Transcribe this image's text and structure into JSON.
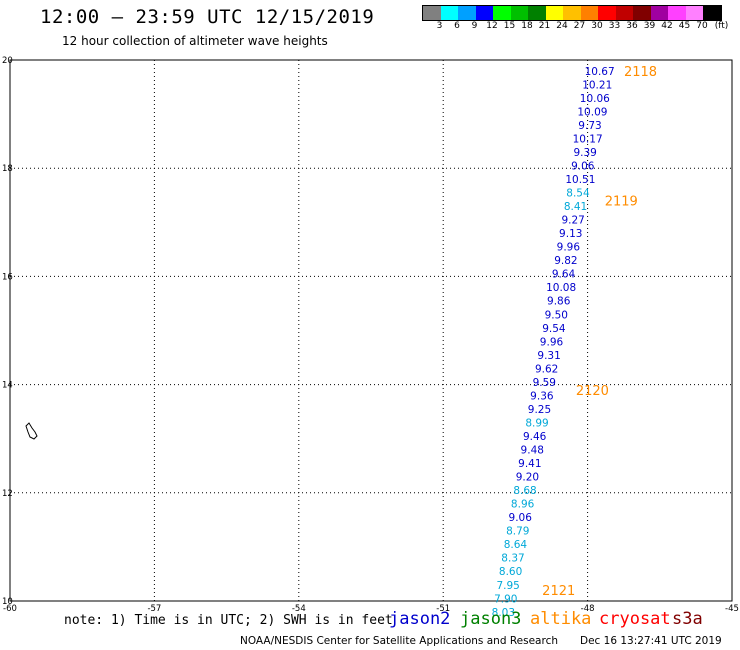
{
  "header": {
    "title": "12:00 — 23:59 UTC 12/15/2019",
    "subtitle": "12 hour collection of altimeter wave heights"
  },
  "scale": {
    "labels": [
      "3",
      "6",
      "9",
      "12",
      "15",
      "18",
      "21",
      "24",
      "27",
      "30",
      "33",
      "36",
      "39",
      "42",
      "45",
      "70",
      "(ft)"
    ],
    "colors": [
      "#808080",
      "#00ffff",
      "#00a0ff",
      "#0000ff",
      "#00ff00",
      "#00c000",
      "#008000",
      "#ffff00",
      "#ffc000",
      "#ff8000",
      "#ff0000",
      "#c00000",
      "#800000",
      "#a000a0",
      "#ff40ff",
      "#ff80ff",
      "#000000"
    ]
  },
  "map": {
    "lon_range": [
      -60,
      -45
    ],
    "lat_range": [
      10,
      20
    ],
    "x_ticks": [
      "-60",
      "-57",
      "-54",
      "-51",
      "-48",
      "-45"
    ],
    "y_ticks": [
      "20",
      "18",
      "16",
      "14",
      "12",
      "10"
    ],
    "colors": {
      "jason2": "#0000cc",
      "jason3": "#008000",
      "altika": "#ff8c00",
      "cryosat": "#ff0000",
      "s3a": "#800000",
      "light": "#00a8d8",
      "grid": "#000000"
    }
  },
  "passes": [
    {
      "label": "2118",
      "lon": -46.9,
      "lat": 19.8
    },
    {
      "label": "2119",
      "lon": -47.3,
      "lat": 17.4
    },
    {
      "label": "2120",
      "lon": -47.9,
      "lat": 13.9
    },
    {
      "label": "2121",
      "lon": -48.6,
      "lat": 10.2
    }
  ],
  "track": [
    {
      "v": "10.67",
      "lon": -47.75,
      "lat": 19.8,
      "c": "dark"
    },
    {
      "v": "10.21",
      "lon": -47.8,
      "lat": 19.55,
      "c": "dark"
    },
    {
      "v": "10.06",
      "lon": -47.85,
      "lat": 19.3,
      "c": "dark"
    },
    {
      "v": "10.09",
      "lon": -47.9,
      "lat": 19.05,
      "c": "dark"
    },
    {
      "v": "9.73",
      "lon": -47.95,
      "lat": 18.8,
      "c": "dark"
    },
    {
      "v": "10.17",
      "lon": -48.0,
      "lat": 18.55,
      "c": "dark"
    },
    {
      "v": "9.39",
      "lon": -48.05,
      "lat": 18.3,
      "c": "dark"
    },
    {
      "v": "9.06",
      "lon": -48.1,
      "lat": 18.05,
      "c": "dark"
    },
    {
      "v": "10.51",
      "lon": -48.15,
      "lat": 17.8,
      "c": "dark"
    },
    {
      "v": "8.54",
      "lon": -48.2,
      "lat": 17.55,
      "c": "light"
    },
    {
      "v": "8.41",
      "lon": -48.25,
      "lat": 17.3,
      "c": "light"
    },
    {
      "v": "9.27",
      "lon": -48.3,
      "lat": 17.05,
      "c": "dark"
    },
    {
      "v": "9.13",
      "lon": -48.35,
      "lat": 16.8,
      "c": "dark"
    },
    {
      "v": "9.96",
      "lon": -48.4,
      "lat": 16.55,
      "c": "dark"
    },
    {
      "v": "9.82",
      "lon": -48.45,
      "lat": 16.3,
      "c": "dark"
    },
    {
      "v": "9.64",
      "lon": -48.5,
      "lat": 16.05,
      "c": "dark"
    },
    {
      "v": "10.08",
      "lon": -48.55,
      "lat": 15.8,
      "c": "dark"
    },
    {
      "v": "9.86",
      "lon": -48.6,
      "lat": 15.55,
      "c": "dark"
    },
    {
      "v": "9.50",
      "lon": -48.65,
      "lat": 15.3,
      "c": "dark"
    },
    {
      "v": "9.54",
      "lon": -48.7,
      "lat": 15.05,
      "c": "dark"
    },
    {
      "v": "9.96",
      "lon": -48.75,
      "lat": 14.8,
      "c": "dark"
    },
    {
      "v": "9.31",
      "lon": -48.8,
      "lat": 14.55,
      "c": "dark"
    },
    {
      "v": "9.62",
      "lon": -48.85,
      "lat": 14.3,
      "c": "dark"
    },
    {
      "v": "9.59",
      "lon": -48.9,
      "lat": 14.05,
      "c": "dark"
    },
    {
      "v": "9.36",
      "lon": -48.95,
      "lat": 13.8,
      "c": "dark"
    },
    {
      "v": "9.25",
      "lon": -49.0,
      "lat": 13.55,
      "c": "dark"
    },
    {
      "v": "8.99",
      "lon": -49.05,
      "lat": 13.3,
      "c": "light"
    },
    {
      "v": "9.46",
      "lon": -49.1,
      "lat": 13.05,
      "c": "dark"
    },
    {
      "v": "9.48",
      "lon": -49.15,
      "lat": 12.8,
      "c": "dark"
    },
    {
      "v": "9.41",
      "lon": -49.2,
      "lat": 12.55,
      "c": "dark"
    },
    {
      "v": "9.20",
      "lon": -49.25,
      "lat": 12.3,
      "c": "dark"
    },
    {
      "v": "8.68",
      "lon": -49.3,
      "lat": 12.05,
      "c": "light"
    },
    {
      "v": "8.96",
      "lon": -49.35,
      "lat": 11.8,
      "c": "light"
    },
    {
      "v": "9.06",
      "lon": -49.4,
      "lat": 11.55,
      "c": "dark"
    },
    {
      "v": "8.79",
      "lon": -49.45,
      "lat": 11.3,
      "c": "light"
    },
    {
      "v": "8.64",
      "lon": -49.5,
      "lat": 11.05,
      "c": "light"
    },
    {
      "v": "8.37",
      "lon": -49.55,
      "lat": 10.8,
      "c": "light"
    },
    {
      "v": "8.60",
      "lon": -49.6,
      "lat": 10.55,
      "c": "light"
    },
    {
      "v": "7.95",
      "lon": -49.65,
      "lat": 10.3,
      "c": "light"
    },
    {
      "v": "7.90",
      "lon": -49.7,
      "lat": 10.05,
      "c": "light"
    },
    {
      "v": "8.03",
      "lon": -49.75,
      "lat": 9.8,
      "c": "light"
    }
  ],
  "footer": {
    "note": "note: 1) Time is in UTC; 2) SWH is in feet",
    "satellites": [
      {
        "name": "jason2",
        "color": "#0000cc"
      },
      {
        "name": "jason3",
        "color": "#008000"
      },
      {
        "name": "altika",
        "color": "#ff8c00"
      },
      {
        "name": "cryosat",
        "color": "#ff0000"
      },
      {
        "name": "s3a",
        "color": "#800000"
      }
    ],
    "credit": "NOAA/NESDIS Center for Satellite Applications and Research",
    "timestamp": "Dec 16 13:27:41 UTC 2019"
  }
}
